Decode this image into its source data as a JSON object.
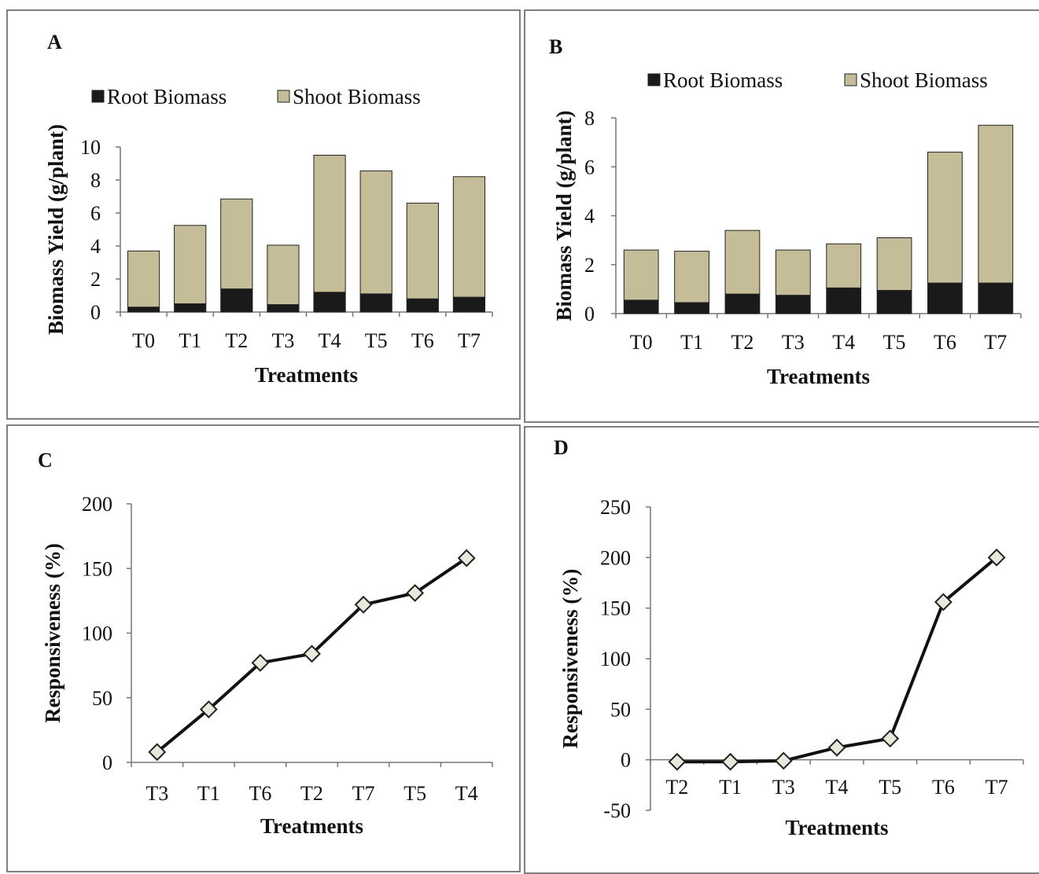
{
  "chart_data": [
    {
      "panel": "A",
      "type": "bar",
      "stacked": true,
      "categories": [
        "T0",
        "T1",
        "T2",
        "T3",
        "T4",
        "T5",
        "T6",
        "T7"
      ],
      "series": [
        {
          "name": "Root Biomass",
          "color": "#1a1a1a",
          "values": [
            0.3,
            0.5,
            1.4,
            0.45,
            1.2,
            1.1,
            0.8,
            0.9
          ]
        },
        {
          "name": "Shoot Biomass",
          "color": "#c4bd97",
          "values": [
            3.4,
            4.75,
            5.45,
            3.6,
            8.3,
            7.45,
            5.8,
            7.3
          ]
        }
      ],
      "xlabel": "Treatments",
      "ylabel": "Biomass Yield (g/plant)",
      "ylim": [
        0,
        10
      ],
      "yticks": [
        "0",
        "2",
        "4",
        "6",
        "8",
        "10"
      ],
      "legend": "top"
    },
    {
      "panel": "B",
      "type": "bar",
      "stacked": true,
      "categories": [
        "T0",
        "T1",
        "T2",
        "T3",
        "T4",
        "T5",
        "T6",
        "T7"
      ],
      "series": [
        {
          "name": "Root Biomass",
          "color": "#1a1a1a",
          "values": [
            0.55,
            0.45,
            0.8,
            0.75,
            1.05,
            0.95,
            1.25,
            1.25
          ]
        },
        {
          "name": "Shoot Biomass",
          "color": "#c4bd97",
          "values": [
            2.05,
            2.1,
            2.6,
            1.85,
            1.8,
            2.15,
            5.35,
            6.45
          ]
        }
      ],
      "xlabel": "Treatments",
      "ylabel": "Biomass Yield (g/plant)",
      "ylim": [
        0,
        8
      ],
      "yticks": [
        "0",
        "2",
        "4",
        "6",
        "8"
      ],
      "legend": "top"
    },
    {
      "panel": "C",
      "type": "line",
      "categories": [
        "T3",
        "T1",
        "T6",
        "T2",
        "T7",
        "T5",
        "T4"
      ],
      "values": [
        8,
        41,
        77,
        84,
        122,
        131,
        158
      ],
      "xlabel": "Treatments",
      "ylabel": "Responsiveness (%)",
      "ylim": [
        0,
        200
      ],
      "yticks": [
        "0",
        "50",
        "100",
        "150",
        "200"
      ],
      "line_color": "#111111",
      "marker": "diamond",
      "marker_fill": "#e8e8dc"
    },
    {
      "panel": "D",
      "type": "line",
      "categories": [
        "T2",
        "T1",
        "T3",
        "T4",
        "T5",
        "T6",
        "T7"
      ],
      "values": [
        -2,
        -2,
        -1,
        12,
        21,
        156,
        200
      ],
      "xlabel": "Treatments",
      "ylabel": "Responsiveness (%)",
      "ylim": [
        -50,
        250
      ],
      "yticks": [
        "-50",
        "0",
        "50",
        "100",
        "150",
        "200",
        "250"
      ],
      "line_color": "#111111",
      "marker": "diamond",
      "marker_fill": "#e8e8dc"
    }
  ]
}
